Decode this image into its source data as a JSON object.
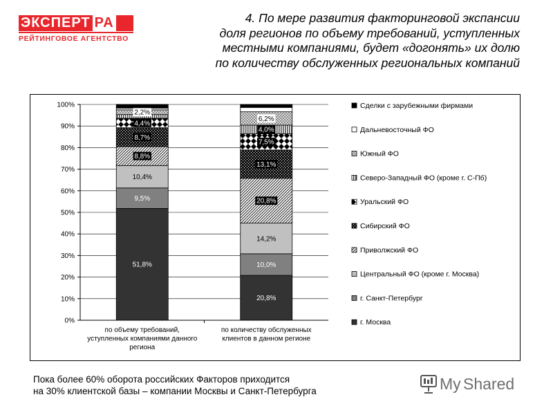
{
  "logo": {
    "line1_a": "ЭКСПЕРТ",
    "line1_b": "РА",
    "line2": "РЕЙТИНГОВОЕ АГЕНТСТВО"
  },
  "title_lines": [
    "4. По мере развития факторинговой экспансии",
    "доля регионов по объему требований, уступленных",
    "местными компаниями, будет «догонять» их долю",
    "по количеству обслуженных региональных компаний"
  ],
  "footer_lines": [
    "Пока более 60% оборота российских Факторов приходится",
    "на 30% клиентской базы – компании Москвы и Санкт-Петербурга"
  ],
  "brand": {
    "text_a": "My",
    "text_b": "Shared"
  },
  "chart_data": {
    "type": "bar",
    "stacked": true,
    "ylim": [
      0,
      100
    ],
    "y_ticks": [
      "0%",
      "10%",
      "20%",
      "30%",
      "40%",
      "50%",
      "60%",
      "70%",
      "80%",
      "90%",
      "100%"
    ],
    "categories": [
      [
        "по объему требований,",
        "уступленных компаниями данного",
        "региона"
      ],
      [
        "по количеству обслуженных",
        "клиентов в данном регионе"
      ]
    ],
    "legend_position": "right",
    "series": [
      {
        "name": "г. Москва",
        "values": [
          51.8,
          20.8
        ],
        "labels": [
          "51,8%",
          "20,8%"
        ],
        "color": "#333333",
        "pattern": "solid"
      },
      {
        "name": "г. Санкт-Петербург",
        "values": [
          9.5,
          10.0
        ],
        "labels": [
          "9,5%",
          "10,0%"
        ],
        "color": "#808080",
        "pattern": "solid"
      },
      {
        "name": "Центральный ФО (кроме г. Москва)",
        "values": [
          10.4,
          14.2
        ],
        "labels": [
          "10,4%",
          "14,2%"
        ],
        "color": "#c0c0c0",
        "pattern": "solid"
      },
      {
        "name": "Приволжский ФО",
        "values": [
          8.8,
          20.8
        ],
        "labels": [
          "8,8%",
          "20,8%"
        ],
        "color": "#333333",
        "pattern": "diag"
      },
      {
        "name": "Сибирский ФО",
        "values": [
          8.7,
          13.1
        ],
        "labels": [
          "8,7%",
          "13,1%"
        ],
        "color": "#222222",
        "pattern": "dots"
      },
      {
        "name": "Уральский ФО",
        "values": [
          4.4,
          7.5
        ],
        "labels": [
          "4,4%",
          "7,5%"
        ],
        "color": "#000000",
        "pattern": "diamond"
      },
      {
        "name": "Северо-Западный ФО (кроме г. С-Пб)",
        "values": [
          1.7,
          4.0
        ],
        "labels": [
          "",
          "4,0%"
        ],
        "color": "#555555",
        "pattern": "vlines"
      },
      {
        "name": "Южный ФО",
        "values": [
          2.2,
          6.2
        ],
        "labels": [
          "2,2%",
          "6,2%"
        ],
        "color": "#888888",
        "pattern": "check"
      },
      {
        "name": "Дальневосточный ФО",
        "values": [
          0.8,
          2.0
        ],
        "labels": [
          "",
          ""
        ],
        "color": "#ffffff",
        "pattern": "solid"
      },
      {
        "name": "Сделки с зарубежными фирмами",
        "values": [
          1.7,
          1.4
        ],
        "labels": [
          "",
          ""
        ],
        "color": "#000000",
        "pattern": "solid"
      }
    ]
  }
}
